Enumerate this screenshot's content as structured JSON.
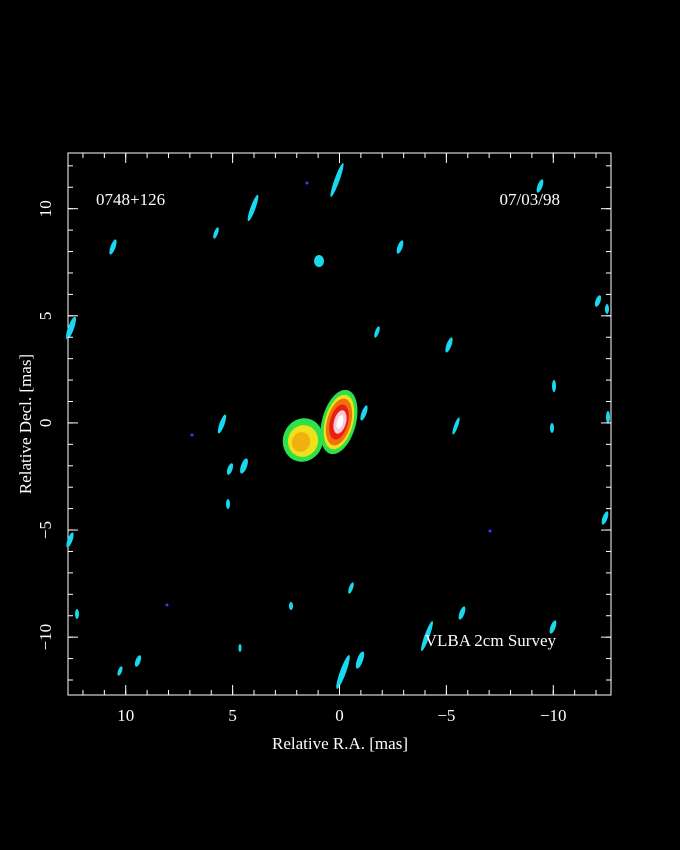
{
  "chart_data": {
    "type": "image",
    "source": "0748+126",
    "date": "07/03/98",
    "survey": "VLBA 2cm Survey",
    "x_label": "Relative R.A. [mas]",
    "y_label": "Relative Decl. [mas]",
    "xlim": [
      12.7,
      -12.7
    ],
    "ylim": [
      -12.7,
      12.6
    ],
    "xticks": [
      10,
      5,
      0,
      {
        "value": -5,
        "label": "−5"
      },
      {
        "value": -10,
        "label": "−10"
      }
    ],
    "yticks": [
      {
        "value": -10,
        "label": "−10"
      },
      {
        "value": -5,
        "label": "−5"
      },
      0,
      5,
      10
    ]
  }
}
